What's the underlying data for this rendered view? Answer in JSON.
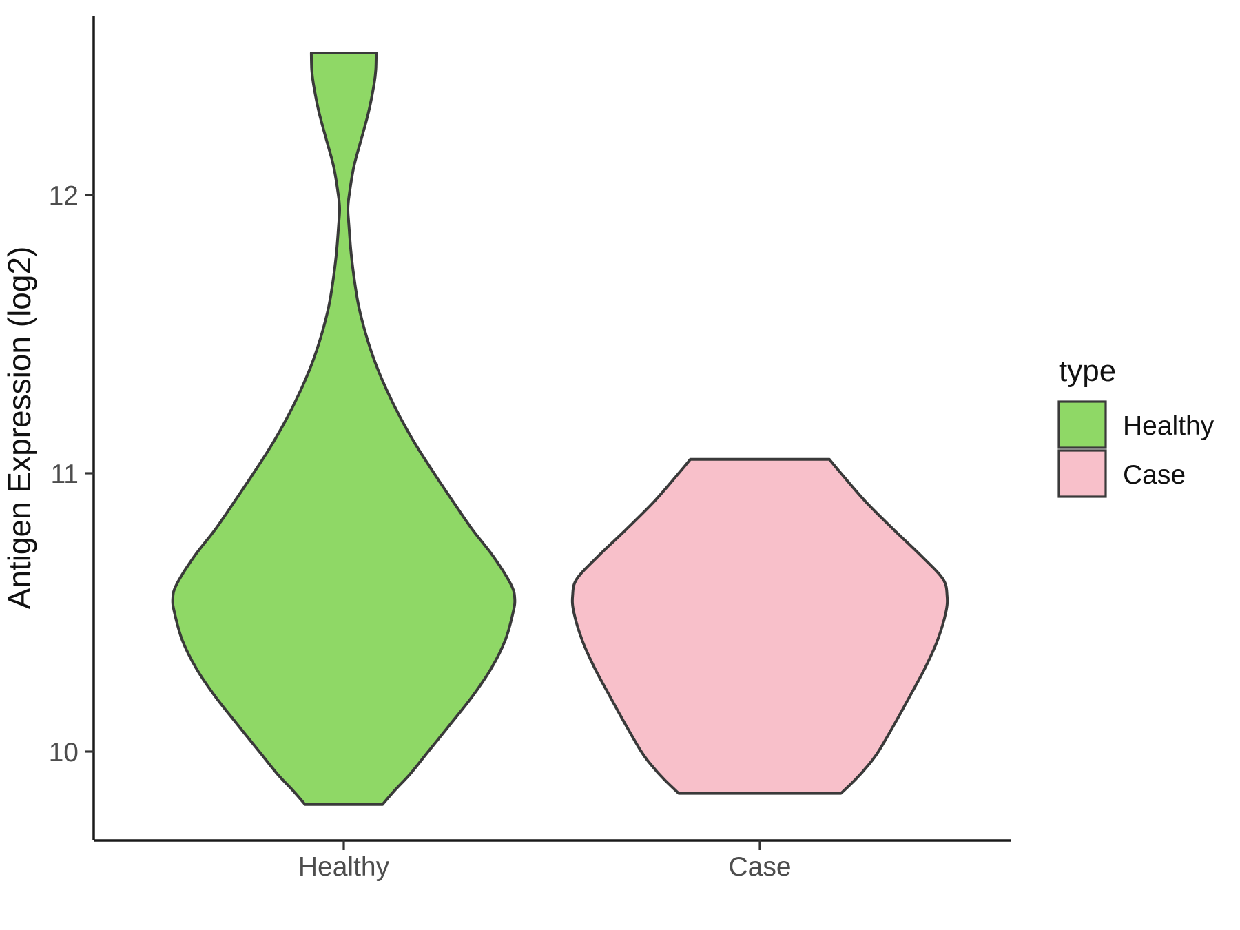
{
  "chart_data": {
    "type": "violin",
    "title": "",
    "xlabel": "",
    "ylabel": "Antigen Expression (log2)",
    "categories": [
      "Healthy",
      "Case"
    ],
    "y_ticks_top_to_bottom": [
      "12",
      "11",
      "10"
    ],
    "y_tick_values": [
      12,
      11,
      10
    ],
    "ylim": [
      9.6,
      12.65
    ],
    "grid": "off",
    "legend": {
      "title": "type",
      "position": "right",
      "entries": [
        {
          "label": "Healthy",
          "color": "#8FD866"
        },
        {
          "label": "Case",
          "color": "#F8C0CA"
        }
      ]
    },
    "outline_color": "#3A3A3A",
    "series": [
      {
        "name": "Healthy",
        "category": "Healthy",
        "fill": "#8FD866",
        "value_min": 9.81,
        "value_max": 12.51,
        "waist_value": 11.95,
        "widest_value": 10.58,
        "profile_value_halfwidth": [
          [
            12.51,
            0.078
          ],
          [
            12.45,
            0.077
          ],
          [
            12.4,
            0.073
          ],
          [
            12.3,
            0.06
          ],
          [
            12.2,
            0.042
          ],
          [
            12.1,
            0.024
          ],
          [
            12.0,
            0.013
          ],
          [
            11.95,
            0.01
          ],
          [
            11.9,
            0.012
          ],
          [
            11.8,
            0.017
          ],
          [
            11.7,
            0.025
          ],
          [
            11.6,
            0.036
          ],
          [
            11.5,
            0.053
          ],
          [
            11.4,
            0.075
          ],
          [
            11.3,
            0.103
          ],
          [
            11.2,
            0.136
          ],
          [
            11.1,
            0.174
          ],
          [
            11.0,
            0.217
          ],
          [
            10.9,
            0.262
          ],
          [
            10.8,
            0.308
          ],
          [
            10.7,
            0.36
          ],
          [
            10.6,
            0.402
          ],
          [
            10.55,
            0.411
          ],
          [
            10.5,
            0.407
          ],
          [
            10.4,
            0.388
          ],
          [
            10.3,
            0.355
          ],
          [
            10.2,
            0.31
          ],
          [
            10.1,
            0.257
          ],
          [
            10.0,
            0.203
          ],
          [
            9.92,
            0.16
          ],
          [
            9.86,
            0.122
          ],
          [
            9.81,
            0.093
          ]
        ]
      },
      {
        "name": "Case",
        "category": "Case",
        "fill": "#F8C0CA",
        "value_min": 9.85,
        "value_max": 11.05,
        "widest_value": 10.58,
        "profile_value_halfwidth": [
          [
            11.05,
            0.167
          ],
          [
            11.0,
            0.195
          ],
          [
            10.9,
            0.253
          ],
          [
            10.8,
            0.32
          ],
          [
            10.7,
            0.39
          ],
          [
            10.62,
            0.44
          ],
          [
            10.56,
            0.45
          ],
          [
            10.5,
            0.447
          ],
          [
            10.4,
            0.427
          ],
          [
            10.3,
            0.397
          ],
          [
            10.2,
            0.361
          ],
          [
            10.1,
            0.324
          ],
          [
            10.0,
            0.285
          ],
          [
            9.95,
            0.26
          ],
          [
            9.9,
            0.23
          ],
          [
            9.85,
            0.195
          ]
        ]
      }
    ]
  }
}
